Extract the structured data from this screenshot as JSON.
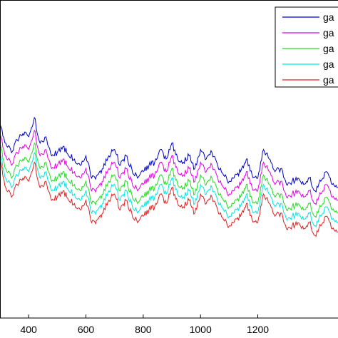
{
  "chart_data": {
    "type": "line",
    "title": "",
    "xlabel": "",
    "ylabel": "",
    "xlim": [
      300,
      1480
    ],
    "ylim": [
      0,
      1
    ],
    "grid": false,
    "legend_position": "top-right",
    "x_tick_labels": [
      "400",
      "600",
      "800",
      "1000",
      "1200"
    ],
    "x_ticks": [
      400,
      600,
      800,
      1000,
      1200
    ],
    "x": [
      300,
      320,
      340,
      360,
      380,
      400,
      420,
      440,
      460,
      480,
      500,
      520,
      540,
      560,
      580,
      600,
      620,
      640,
      660,
      680,
      700,
      720,
      740,
      760,
      780,
      800,
      820,
      840,
      860,
      880,
      900,
      920,
      940,
      960,
      980,
      1000,
      1020,
      1040,
      1060,
      1080,
      1100,
      1120,
      1140,
      1160,
      1180,
      1200,
      1220,
      1240,
      1260,
      1280,
      1300,
      1320,
      1340,
      1360,
      1380,
      1400,
      1420,
      1440,
      1460,
      1480
    ],
    "series": [
      {
        "name": "ga",
        "color": "#0000c8",
        "values": [
          0.61,
          0.55,
          0.52,
          0.56,
          0.58,
          0.57,
          0.63,
          0.55,
          0.57,
          0.51,
          0.52,
          0.54,
          0.51,
          0.5,
          0.48,
          0.51,
          0.44,
          0.45,
          0.47,
          0.51,
          0.53,
          0.48,
          0.51,
          0.47,
          0.44,
          0.46,
          0.48,
          0.49,
          0.53,
          0.5,
          0.55,
          0.5,
          0.49,
          0.51,
          0.47,
          0.53,
          0.5,
          0.52,
          0.48,
          0.45,
          0.43,
          0.45,
          0.46,
          0.5,
          0.45,
          0.44,
          0.53,
          0.5,
          0.46,
          0.47,
          0.42,
          0.43,
          0.44,
          0.42,
          0.44,
          0.4,
          0.43,
          0.46,
          0.42,
          0.41
        ]
      },
      {
        "name": "ga",
        "color": "#e600e6",
        "values": [
          0.58,
          0.51,
          0.48,
          0.52,
          0.54,
          0.53,
          0.59,
          0.51,
          0.53,
          0.47,
          0.48,
          0.5,
          0.47,
          0.46,
          0.44,
          0.47,
          0.4,
          0.41,
          0.43,
          0.47,
          0.49,
          0.44,
          0.47,
          0.43,
          0.4,
          0.42,
          0.44,
          0.45,
          0.49,
          0.46,
          0.51,
          0.46,
          0.45,
          0.47,
          0.43,
          0.49,
          0.46,
          0.48,
          0.44,
          0.41,
          0.39,
          0.41,
          0.42,
          0.46,
          0.41,
          0.4,
          0.49,
          0.46,
          0.42,
          0.43,
          0.38,
          0.39,
          0.4,
          0.38,
          0.4,
          0.36,
          0.39,
          0.42,
          0.38,
          0.37
        ]
      },
      {
        "name": "ga",
        "color": "#22dd22",
        "values": [
          0.55,
          0.47,
          0.44,
          0.48,
          0.5,
          0.49,
          0.55,
          0.47,
          0.49,
          0.43,
          0.44,
          0.46,
          0.43,
          0.42,
          0.4,
          0.43,
          0.36,
          0.37,
          0.39,
          0.43,
          0.45,
          0.4,
          0.43,
          0.39,
          0.36,
          0.38,
          0.4,
          0.41,
          0.45,
          0.42,
          0.47,
          0.42,
          0.41,
          0.43,
          0.39,
          0.45,
          0.42,
          0.44,
          0.4,
          0.37,
          0.35,
          0.37,
          0.38,
          0.42,
          0.37,
          0.36,
          0.45,
          0.42,
          0.38,
          0.39,
          0.34,
          0.35,
          0.36,
          0.34,
          0.36,
          0.32,
          0.35,
          0.38,
          0.34,
          0.33
        ]
      },
      {
        "name": "ga",
        "color": "#00e5e5",
        "values": [
          0.52,
          0.44,
          0.41,
          0.45,
          0.47,
          0.46,
          0.52,
          0.44,
          0.46,
          0.4,
          0.41,
          0.43,
          0.4,
          0.39,
          0.37,
          0.4,
          0.33,
          0.34,
          0.36,
          0.4,
          0.42,
          0.37,
          0.4,
          0.36,
          0.33,
          0.35,
          0.37,
          0.38,
          0.42,
          0.39,
          0.44,
          0.39,
          0.38,
          0.4,
          0.36,
          0.42,
          0.39,
          0.41,
          0.37,
          0.34,
          0.32,
          0.34,
          0.35,
          0.39,
          0.34,
          0.33,
          0.42,
          0.39,
          0.35,
          0.36,
          0.31,
          0.32,
          0.33,
          0.31,
          0.33,
          0.29,
          0.32,
          0.35,
          0.31,
          0.3
        ]
      },
      {
        "name": "ga",
        "color": "#e02020",
        "values": [
          0.5,
          0.41,
          0.38,
          0.42,
          0.44,
          0.43,
          0.49,
          0.41,
          0.43,
          0.37,
          0.38,
          0.4,
          0.37,
          0.36,
          0.34,
          0.37,
          0.3,
          0.31,
          0.33,
          0.37,
          0.39,
          0.34,
          0.37,
          0.33,
          0.3,
          0.32,
          0.34,
          0.35,
          0.39,
          0.36,
          0.41,
          0.36,
          0.35,
          0.37,
          0.33,
          0.39,
          0.36,
          0.38,
          0.34,
          0.31,
          0.29,
          0.31,
          0.32,
          0.36,
          0.31,
          0.3,
          0.39,
          0.36,
          0.32,
          0.33,
          0.28,
          0.29,
          0.3,
          0.28,
          0.3,
          0.26,
          0.29,
          0.32,
          0.28,
          0.27
        ]
      }
    ]
  }
}
